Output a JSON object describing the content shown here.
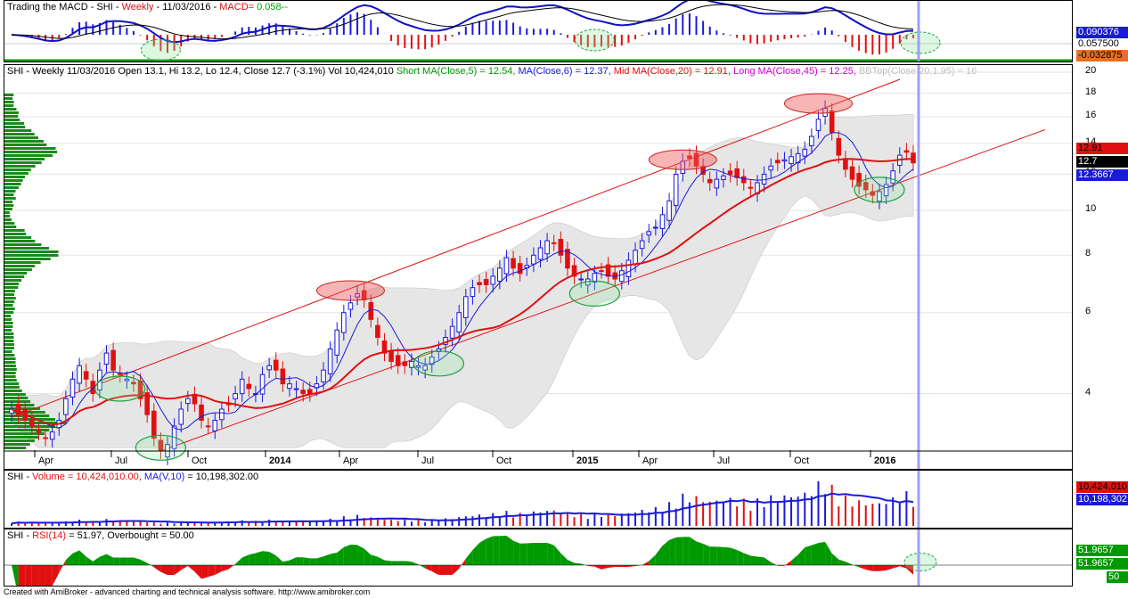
{
  "macd_title": {
    "name": "Trading the MACD - SHI - ",
    "period": "Weekly",
    "date": " - 11/03/2016 - ",
    "macd": "MACD=",
    "val": "0.058",
    "tail": "--"
  },
  "price_title": {
    "a": "SHI - Weekly 11/03/2016 Open 13.1, Hi 13.2, Lo 12.4, Close 12.7 (-3.1%) Vol 10,424,010 ",
    "short": "Short MA(Close,5) = 12.54, ",
    "ma6": "MA(Close,6) = 12.37, ",
    "mid": "Mid MA(Close,20) = 12.91, ",
    "long": "Long MA(Close,45) = 12.25, ",
    "bb": "BBTop(Close,20,1.95) = 16"
  },
  "vol_title": {
    "a": "SHI - ",
    "b": "Volume = 10,424,010.00, ",
    "c": "MA(V,10)",
    "d": " = 10,198,302.00"
  },
  "rsi_title": {
    "a": "SHI - ",
    "b": "RSI(14)",
    "c": " = 51.97, Overbought = 50.00"
  },
  "macd_axis": [
    "0.090376",
    "0.057500",
    "-0.032875"
  ],
  "price_axis": {
    "ticks": [
      "20",
      "18",
      "16",
      "14",
      "12",
      "10",
      "8",
      "6",
      "4"
    ],
    "badges": [
      "12.91",
      "12.7",
      "12.3667"
    ]
  },
  "vol_axis": [
    "10,424,010",
    "10,198,302"
  ],
  "rsi_axis": [
    "51.9657",
    "51.9657",
    "50"
  ],
  "x_labels": [
    {
      "t": "Apr",
      "x": 38,
      "b": false
    },
    {
      "t": "Jul",
      "x": 124,
      "b": false
    },
    {
      "t": "Oct",
      "x": 210,
      "b": false
    },
    {
      "t": "2014",
      "x": 297,
      "b": true
    },
    {
      "t": "Apr",
      "x": 380,
      "b": false
    },
    {
      "t": "Jul",
      "x": 468,
      "b": false
    },
    {
      "t": "Oct",
      "x": 552,
      "b": false
    },
    {
      "t": "2015",
      "x": 642,
      "b": true
    },
    {
      "t": "Apr",
      "x": 716,
      "b": false
    },
    {
      "t": "Jul",
      "x": 800,
      "b": false
    },
    {
      "t": "Oct",
      "x": 886,
      "b": false
    },
    {
      "t": "2016",
      "x": 976,
      "b": true
    }
  ],
  "footer": "Created with AmiBroker - advanced charting and technical analysis software. http://www.amibroker.com",
  "colors": {
    "up": "#1a1adb",
    "down": "#e01010",
    "ma": "#e01010",
    "macd": "#1010c8",
    "signal": "#000000",
    "vol_ma": "#1a1adb",
    "rsi": "#009900",
    "cursor": "#a0a0f0"
  },
  "chart_data": {
    "type": "candlestick",
    "symbol": "SHI",
    "interval": "Weekly",
    "ylim": [
      3,
      20
    ],
    "y_scale": "log",
    "last": {
      "date": "11/03/2016",
      "open": 13.1,
      "high": 13.2,
      "low": 12.4,
      "close": 12.7,
      "change_pct": -3.1,
      "volume": 10424010
    },
    "indicators": {
      "short_ma5": 12.54,
      "ma6": 12.37,
      "mid_ma20": 12.91,
      "long_ma45": 12.25,
      "bb_top": 16,
      "volume_ma10": 10198302,
      "rsi14": 51.97,
      "overbought": 50,
      "macd": 0.058
    },
    "closes": [
      3.7,
      3.6,
      3.5,
      3.4,
      3.3,
      3.2,
      3.3,
      3.5,
      3.9,
      4.3,
      4.6,
      4.3,
      4.0,
      4.5,
      4.9,
      4.5,
      4.4,
      4.3,
      4.2,
      3.9,
      3.6,
      3.2,
      3.0,
      3.1,
      3.4,
      3.7,
      3.9,
      3.8,
      3.5,
      3.4,
      3.5,
      3.7,
      3.8,
      4.0,
      4.3,
      4.1,
      4.0,
      4.4,
      4.6,
      4.5,
      4.2,
      4.2,
      4.1,
      4.0,
      4.0,
      4.2,
      4.5,
      5.0,
      5.5,
      6.0,
      6.3,
      6.6,
      6.4,
      5.8,
      5.3,
      4.9,
      4.7,
      4.6,
      4.6,
      4.7,
      4.6,
      4.6,
      4.8,
      5.0,
      5.3,
      5.6,
      6.0,
      6.5,
      6.8,
      6.9,
      6.9,
      7.2,
      7.5,
      7.9,
      7.5,
      7.3,
      7.6,
      8.0,
      8.3,
      8.6,
      8.5,
      8.0,
      7.5,
      7.2,
      7.1,
      7.1,
      7.3,
      7.4,
      7.2,
      7.1,
      7.4,
      7.8,
      8.2,
      8.6,
      9.0,
      9.2,
      9.8,
      10.5,
      12.0,
      12.8,
      13.0,
      12.5,
      12.0,
      11.5,
      11.7,
      11.9,
      12.0,
      11.8,
      11.5,
      11.2,
      11.5,
      12.0,
      12.5,
      12.7,
      12.9,
      13.1,
      13.3,
      13.6,
      14.5,
      15.8,
      16.7,
      14.8,
      13.2,
      12.3,
      11.7,
      11.3,
      11.1,
      10.8,
      11.0,
      11.4,
      12.2,
      13.2,
      13.4,
      12.7
    ]
  }
}
